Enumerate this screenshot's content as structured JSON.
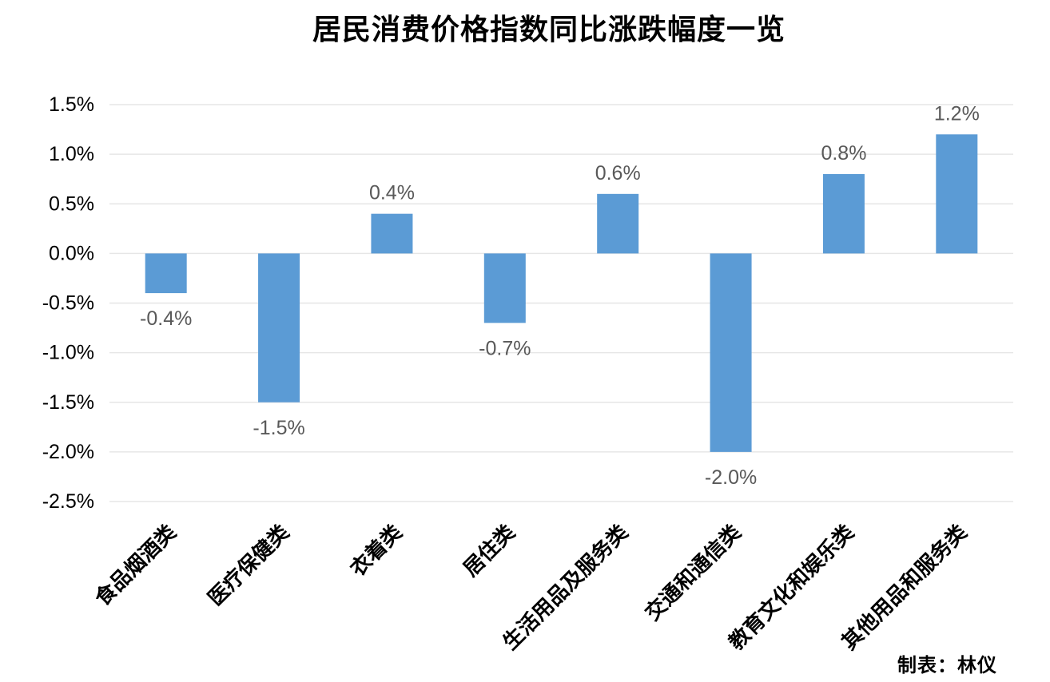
{
  "chart_data": {
    "type": "bar",
    "title": "居民消费价格指数同比涨跌幅度一览",
    "credit": "制表：林仪",
    "categories": [
      "食品烟酒类",
      "医疗保健类",
      "衣着类",
      "居住类",
      "生活用品及服务类",
      "交通和通信类",
      "教育文化和娱乐类",
      "其他用品和服务类"
    ],
    "values": [
      -0.4,
      -1.5,
      0.4,
      -0.7,
      0.6,
      -2.0,
      0.8,
      1.2
    ],
    "value_labels": [
      "-0.4%",
      "-1.5%",
      "0.4%",
      "-0.7%",
      "0.6%",
      "-2.0%",
      "0.8%",
      "1.2%"
    ],
    "yticks": [
      1.5,
      1.0,
      0.5,
      0.0,
      -0.5,
      -1.0,
      -1.5,
      -2.0,
      -2.5
    ],
    "ytick_labels": [
      "1.5%",
      "1.0%",
      "0.5%",
      "0.0%",
      "-0.5%",
      "-1.0%",
      "-1.5%",
      "-2.0%",
      "-2.5%"
    ],
    "ylim": [
      -2.5,
      1.5
    ],
    "grid": true,
    "bar_color": "#5B9BD5",
    "grid_color": "#E6E6E6",
    "label_color": "#595959"
  }
}
